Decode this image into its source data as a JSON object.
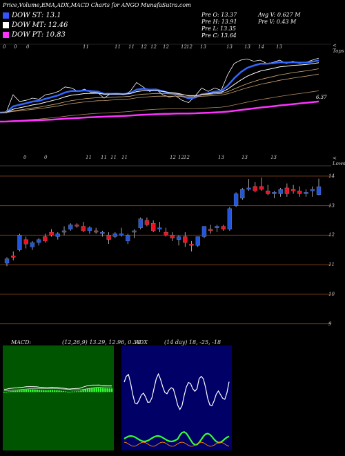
{
  "header": {
    "title": "Price,Volume,EMA,ADX,MACD Charts for ANGO MunafaSutra.com"
  },
  "legend": [
    {
      "label": "DOW ST: 13.1",
      "color": "#3355ff"
    },
    {
      "label": "DOW MT: 12.46",
      "color": "#ffffff"
    },
    {
      "label": "DOW PT: 10.83",
      "color": "#ff33ff"
    }
  ],
  "stats": {
    "prev_open": "Pre   O: 13.37",
    "prev_high": "Pre   H: 13.91",
    "prev_low": "Pre   L: 13.35",
    "prev_close": "Pre   C: 13.64",
    "avg_volume": "Avg V: 0.627 M",
    "prev_volume": "Pre   V: 0.43 M"
  },
  "top_panel": {
    "dates_top": [
      "0",
      "0",
      "0",
      "11",
      "11",
      "11",
      "12",
      "12",
      "12",
      "12",
      "12",
      "13",
      "13",
      "13",
      "14",
      "13"
    ],
    "right_label": "< Tops",
    "ema_value": "6.37"
  },
  "candle_panel": {
    "dates_top": [
      "0",
      "0",
      "11",
      "11",
      "11",
      "11",
      "12",
      "12",
      "12",
      "13",
      "13",
      "13"
    ],
    "right_label": "< Lows",
    "y_ticks": [
      "14",
      "13",
      "12",
      "11",
      "10",
      "9"
    ]
  },
  "macd": {
    "title": "MACD:",
    "params": "(12,26,9) 13.29, 12.96, 0.33"
  },
  "adx": {
    "title": "ADX",
    "params": "(14 day) 18, -25, -18"
  },
  "colors": {
    "background": "#000000",
    "up_candle": "#2255dd",
    "down_candle": "#ee1122",
    "macd_bg": "#005500",
    "macd_hist": "#33ff33",
    "adx_bg": "#000066",
    "grid_brown": "#7a3a18"
  },
  "chart_data": {
    "type": "candlestick",
    "series": [
      {
        "name": "Price",
        "ohlc": [
          [
            11.05,
            11.25,
            10.95,
            11.2
          ],
          [
            11.3,
            11.45,
            11.15,
            11.25
          ],
          [
            11.5,
            12.05,
            11.45,
            12.0
          ],
          [
            11.85,
            11.95,
            11.55,
            11.7
          ],
          [
            11.6,
            11.8,
            11.5,
            11.75
          ],
          [
            11.75,
            11.9,
            11.65,
            11.85
          ],
          [
            11.95,
            12.05,
            11.75,
            11.8
          ],
          [
            12.1,
            12.2,
            11.95,
            12.0
          ],
          [
            11.95,
            12.1,
            11.85,
            12.05
          ],
          [
            12.1,
            12.3,
            12.0,
            12.15
          ],
          [
            12.2,
            12.4,
            12.15,
            12.35
          ],
          [
            12.35,
            12.4,
            12.25,
            12.3
          ],
          [
            12.3,
            12.45,
            12.1,
            12.15
          ],
          [
            12.15,
            12.3,
            12.05,
            12.25
          ],
          [
            12.15,
            12.25,
            12.05,
            12.1
          ],
          [
            12.05,
            12.15,
            11.95,
            12.1
          ],
          [
            12.0,
            12.1,
            11.7,
            11.85
          ],
          [
            11.95,
            12.1,
            11.9,
            12.05
          ],
          [
            12.0,
            12.25,
            11.95,
            12.05
          ],
          [
            11.8,
            12.05,
            11.7,
            12.0
          ],
          [
            12.1,
            12.2,
            11.9,
            12.15
          ],
          [
            12.25,
            12.6,
            12.2,
            12.55
          ],
          [
            12.5,
            12.6,
            12.3,
            12.35
          ],
          [
            12.4,
            12.5,
            12.1,
            12.15
          ],
          [
            12.2,
            12.45,
            12.1,
            12.25
          ],
          [
            12.1,
            12.25,
            11.95,
            12.0
          ],
          [
            12.0,
            12.1,
            11.8,
            11.9
          ],
          [
            11.85,
            12.0,
            11.65,
            11.95
          ],
          [
            11.95,
            12.1,
            11.6,
            11.75
          ],
          [
            11.7,
            11.8,
            11.45,
            11.65
          ],
          [
            11.65,
            11.95,
            11.6,
            11.95
          ],
          [
            11.95,
            12.3,
            11.9,
            12.3
          ],
          [
            12.2,
            12.35,
            12.05,
            12.15
          ],
          [
            12.25,
            12.35,
            12.1,
            12.3
          ],
          [
            12.3,
            12.35,
            12.15,
            12.2
          ],
          [
            12.2,
            12.95,
            12.15,
            12.9
          ],
          [
            13.0,
            13.45,
            12.95,
            13.4
          ],
          [
            13.25,
            13.6,
            13.2,
            13.55
          ],
          [
            13.55,
            13.9,
            13.5,
            13.6
          ],
          [
            13.65,
            13.8,
            13.45,
            13.5
          ],
          [
            13.65,
            13.95,
            13.5,
            13.55
          ],
          [
            13.5,
            13.7,
            13.35,
            13.4
          ],
          [
            13.4,
            13.5,
            13.25,
            13.45
          ],
          [
            13.4,
            13.6,
            13.3,
            13.55
          ],
          [
            13.6,
            13.75,
            13.3,
            13.4
          ],
          [
            13.55,
            13.7,
            13.4,
            13.5
          ],
          [
            13.5,
            13.65,
            13.3,
            13.4
          ],
          [
            13.4,
            13.55,
            13.3,
            13.45
          ],
          [
            13.5,
            13.65,
            13.3,
            13.55
          ],
          [
            13.37,
            13.91,
            13.35,
            13.64
          ]
        ]
      }
    ],
    "y_ticks": [
      14,
      13,
      12,
      11,
      10,
      9
    ],
    "ylim": [
      8.5,
      14.3
    ],
    "macd": {
      "params": [
        12,
        26,
        9
      ],
      "macd": 13.29,
      "signal": 12.96,
      "histogram": 0.33
    },
    "adx": {
      "period": 14,
      "adx": 18,
      "plus_di": -25,
      "minus_di": -18
    }
  }
}
